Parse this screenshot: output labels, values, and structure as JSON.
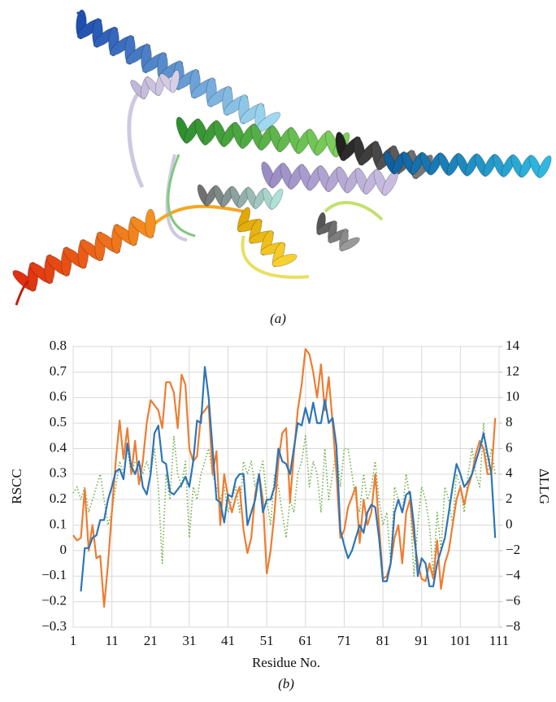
{
  "figure_a": {
    "caption": "(a)"
  },
  "chart_data": {
    "type": "line",
    "caption": "(b)",
    "xlabel": "Residue No.",
    "ylabel": "RSCC",
    "y2label": "ΔLLG",
    "grid": true,
    "x": [
      1,
      2,
      3,
      4,
      5,
      6,
      7,
      8,
      9,
      10,
      11,
      12,
      13,
      14,
      15,
      16,
      17,
      18,
      19,
      20,
      21,
      22,
      23,
      24,
      25,
      26,
      27,
      28,
      29,
      30,
      31,
      32,
      33,
      34,
      35,
      36,
      37,
      38,
      39,
      40,
      41,
      42,
      43,
      44,
      45,
      46,
      47,
      48,
      49,
      50,
      51,
      52,
      53,
      54,
      55,
      56,
      57,
      58,
      59,
      60,
      61,
      62,
      63,
      64,
      65,
      66,
      67,
      68,
      69,
      70,
      71,
      72,
      73,
      74,
      75,
      76,
      77,
      78,
      79,
      80,
      81,
      82,
      83,
      84,
      85,
      86,
      87,
      88,
      89,
      90,
      91,
      92,
      93,
      94,
      95,
      96,
      97,
      98,
      99,
      100,
      101,
      102,
      103,
      104,
      105,
      106,
      107,
      108,
      109,
      110
    ],
    "xlim": [
      1,
      111
    ],
    "xticks": [
      1,
      11,
      21,
      31,
      41,
      51,
      61,
      71,
      81,
      91,
      101,
      111
    ],
    "ylim": [
      -0.3,
      0.8
    ],
    "yticks": [
      {
        "value": -0.3,
        "label": "−0.3"
      },
      {
        "value": -0.2,
        "label": "−0.2"
      },
      {
        "value": -0.1,
        "label": "−0.1"
      },
      0,
      0.1,
      0.2,
      0.3,
      0.4,
      0.5,
      0.6,
      0.7,
      0.8
    ],
    "y2lim": [
      -8,
      14
    ],
    "y2ticks": [
      {
        "value": -8,
        "label": "−8"
      },
      {
        "value": -6,
        "label": "−6"
      },
      {
        "value": -4,
        "label": "−4"
      },
      {
        "value": -2,
        "label": "−2"
      },
      0,
      2,
      4,
      6,
      8,
      10,
      12,
      14
    ],
    "series": [
      {
        "color": "#ed7d31",
        "style": "solid",
        "values": [
          0.06,
          0.04,
          0.05,
          0.24,
          0.0,
          0.1,
          -0.03,
          -0.02,
          -0.22,
          -0.05,
          0.15,
          0.35,
          0.51,
          0.36,
          0.48,
          0.3,
          0.43,
          0.26,
          0.35,
          0.5,
          0.59,
          0.57,
          0.55,
          0.48,
          0.66,
          0.66,
          0.62,
          0.48,
          0.69,
          0.65,
          0.4,
          0.35,
          0.37,
          0.53,
          0.55,
          0.57,
          0.3,
          0.39,
          0.1,
          0.3,
          0.21,
          0.15,
          0.21,
          0.25,
          0.08,
          -0.01,
          0.05,
          0.22,
          0.3,
          0.2,
          -0.09,
          0.0,
          0.15,
          0.35,
          0.46,
          0.48,
          0.19,
          0.38,
          0.55,
          0.65,
          0.79,
          0.77,
          0.7,
          0.6,
          0.73,
          0.55,
          0.68,
          0.5,
          0.3,
          0.05,
          0.08,
          0.17,
          0.21,
          0.25,
          0.03,
          0.2,
          0.1,
          0.15,
          0.3,
          0.1,
          -0.11,
          -0.1,
          -0.05,
          0.05,
          0.1,
          -0.05,
          0.15,
          0.2,
          0.05,
          -0.05,
          -0.11,
          -0.12,
          -0.05,
          -0.11,
          0.04,
          -0.15,
          -0.05,
          0.0,
          0.1,
          0.2,
          0.25,
          0.18,
          0.25,
          0.3,
          0.38,
          0.43,
          0.4,
          0.3,
          0.3,
          0.52
        ]
      },
      {
        "color": "#2e75b6",
        "style": "solid",
        "values": [
          null,
          null,
          -0.16,
          0.01,
          0.01,
          0.05,
          0.06,
          0.12,
          0.12,
          0.2,
          0.25,
          0.31,
          0.32,
          0.28,
          0.42,
          0.33,
          0.3,
          0.35,
          0.25,
          0.22,
          0.3,
          0.46,
          0.49,
          0.35,
          0.34,
          0.23,
          0.22,
          0.24,
          0.26,
          0.29,
          0.25,
          0.35,
          0.51,
          0.5,
          0.72,
          0.6,
          0.4,
          0.2,
          0.19,
          0.11,
          0.22,
          0.21,
          0.28,
          0.3,
          0.3,
          0.1,
          0.15,
          0.2,
          0.3,
          0.15,
          0.2,
          0.2,
          0.25,
          0.4,
          0.35,
          0.34,
          0.3,
          0.4,
          0.5,
          0.49,
          0.56,
          0.5,
          0.58,
          0.5,
          0.5,
          0.59,
          0.5,
          0.52,
          0.41,
          0.08,
          0.02,
          -0.03,
          0.0,
          0.05,
          0.1,
          0.07,
          0.15,
          0.18,
          0.17,
          0.05,
          -0.12,
          -0.12,
          -0.05,
          0.15,
          0.2,
          0.15,
          0.22,
          0.23,
          0.1,
          -0.1,
          -0.03,
          -0.05,
          -0.14,
          -0.14,
          -0.05,
          0.0,
          0.05,
          0.15,
          0.25,
          0.34,
          0.3,
          0.25,
          0.27,
          0.3,
          0.35,
          0.4,
          0.46,
          0.38,
          0.3,
          0.05
        ]
      },
      {
        "color": "#70ad47",
        "style": "dotted",
        "axis": "y2",
        "values": [
          2.5,
          3,
          2,
          3,
          1,
          2,
          3,
          4,
          2,
          0,
          1,
          3,
          5,
          4,
          6,
          4,
          5,
          5,
          4,
          5,
          4,
          6,
          3,
          -3,
          4,
          2,
          7,
          4,
          3,
          5,
          -1,
          3,
          2,
          4,
          5,
          6,
          4,
          3,
          2,
          3,
          1,
          2,
          3,
          1,
          5,
          4,
          5,
          3,
          4,
          5,
          2,
          0,
          4,
          3,
          1,
          -1,
          2,
          1,
          4,
          5,
          7,
          3,
          5,
          4,
          1,
          6,
          2,
          4,
          6,
          3,
          6,
          6,
          4,
          2,
          1,
          4,
          2,
          3,
          5,
          2,
          0,
          1,
          -3,
          3,
          2,
          1,
          4,
          2,
          -4,
          0,
          3,
          2,
          0,
          -4,
          1,
          -2,
          3,
          2,
          0,
          4,
          3,
          1,
          4,
          6,
          4,
          3,
          8,
          4,
          6,
          4
        ]
      }
    ]
  }
}
